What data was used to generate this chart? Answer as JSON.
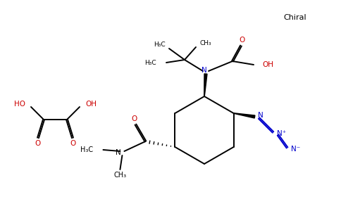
{
  "bg_color": "#ffffff",
  "black": "#000000",
  "red": "#cc0000",
  "blue": "#0000cc",
  "figsize": [
    4.84,
    3.0
  ],
  "dpi": 100,
  "chiral_label": "Chiral",
  "tBu_labels": [
    "H₃C",
    "CH₃",
    "H₃C"
  ],
  "amide_labels": [
    "O",
    "N",
    "H₃C",
    "CH₃"
  ],
  "boc_labels": [
    "N",
    "O",
    "OH"
  ],
  "azide_labels": [
    "N",
    "N⁺",
    "N⁻"
  ],
  "oxalic_labels": [
    "HO",
    "OH",
    "O",
    "O"
  ]
}
